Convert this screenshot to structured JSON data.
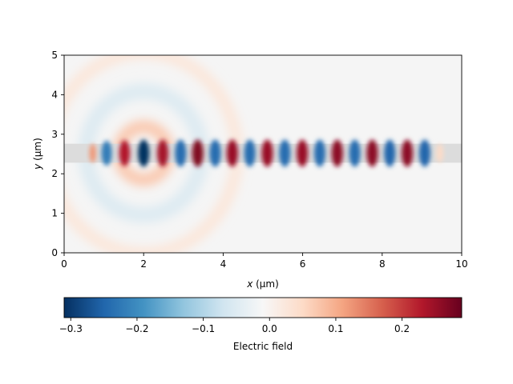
{
  "chart_data": {
    "type": "heatmap",
    "title": "",
    "xlabel_var": "x",
    "xlabel_unit": " (µm)",
    "ylabel_var": "y",
    "ylabel_unit": " (µm)",
    "xlim": [
      0,
      10
    ],
    "ylim": [
      0,
      5
    ],
    "x_ticks": [
      0,
      2,
      4,
      6,
      8,
      10
    ],
    "x_tick_labels": [
      "0",
      "2",
      "4",
      "6",
      "8",
      "10"
    ],
    "y_ticks": [
      0,
      1,
      2,
      3,
      4,
      5
    ],
    "y_tick_labels": [
      "0",
      "1",
      "2",
      "3",
      "4",
      "5"
    ],
    "grid": false,
    "colormap": "RdBu",
    "colormap_stops": [
      "#67001f",
      "#b2182b",
      "#d6604d",
      "#f4a582",
      "#fddbc7",
      "#f7f7f7",
      "#d1e5f0",
      "#92c5de",
      "#4393c3",
      "#2166ac",
      "#053061"
    ],
    "colorbar": {
      "label": "Electric field",
      "orientation": "horizontal",
      "range": [
        -0.31,
        0.29
      ],
      "ticks": [
        -0.3,
        -0.2,
        -0.1,
        0.0,
        0.1,
        0.2
      ],
      "tick_labels": [
        "−0.3",
        "−0.2",
        "−0.1",
        "0.0",
        "0.1",
        "0.2"
      ]
    },
    "waveguide": {
      "y_center": 2.52,
      "width": 0.48,
      "x_start": 0,
      "x_end": 10,
      "color": "#dcdcdc"
    },
    "source": {
      "x": 2.0,
      "y": 2.52
    },
    "field_lobes": [
      {
        "x": 0.72,
        "value": 0.12
      },
      {
        "x": 1.07,
        "value": -0.22
      },
      {
        "x": 1.52,
        "value": 0.23
      },
      {
        "x": 2.0,
        "value": -0.31
      },
      {
        "x": 2.48,
        "value": 0.24
      },
      {
        "x": 2.93,
        "value": -0.24
      },
      {
        "x": 3.36,
        "value": 0.27
      },
      {
        "x": 3.8,
        "value": -0.24
      },
      {
        "x": 4.23,
        "value": 0.25
      },
      {
        "x": 4.67,
        "value": -0.24
      },
      {
        "x": 5.11,
        "value": 0.25
      },
      {
        "x": 5.55,
        "value": -0.24
      },
      {
        "x": 5.99,
        "value": 0.25
      },
      {
        "x": 6.43,
        "value": -0.24
      },
      {
        "x": 6.87,
        "value": 0.26
      },
      {
        "x": 7.31,
        "value": -0.24
      },
      {
        "x": 7.75,
        "value": 0.26
      },
      {
        "x": 8.19,
        "value": -0.25
      },
      {
        "x": 8.63,
        "value": 0.26
      },
      {
        "x": 9.07,
        "value": -0.25
      },
      {
        "x": 9.45,
        "value": 0.05
      }
    ],
    "radiation": {
      "ring_inner": {
        "radius": 0.62,
        "value": 0.07
      },
      "ring_outer": {
        "radius": 1.45,
        "value": -0.05
      },
      "ring_far": {
        "radius": 2.35,
        "value": 0.025
      }
    }
  }
}
